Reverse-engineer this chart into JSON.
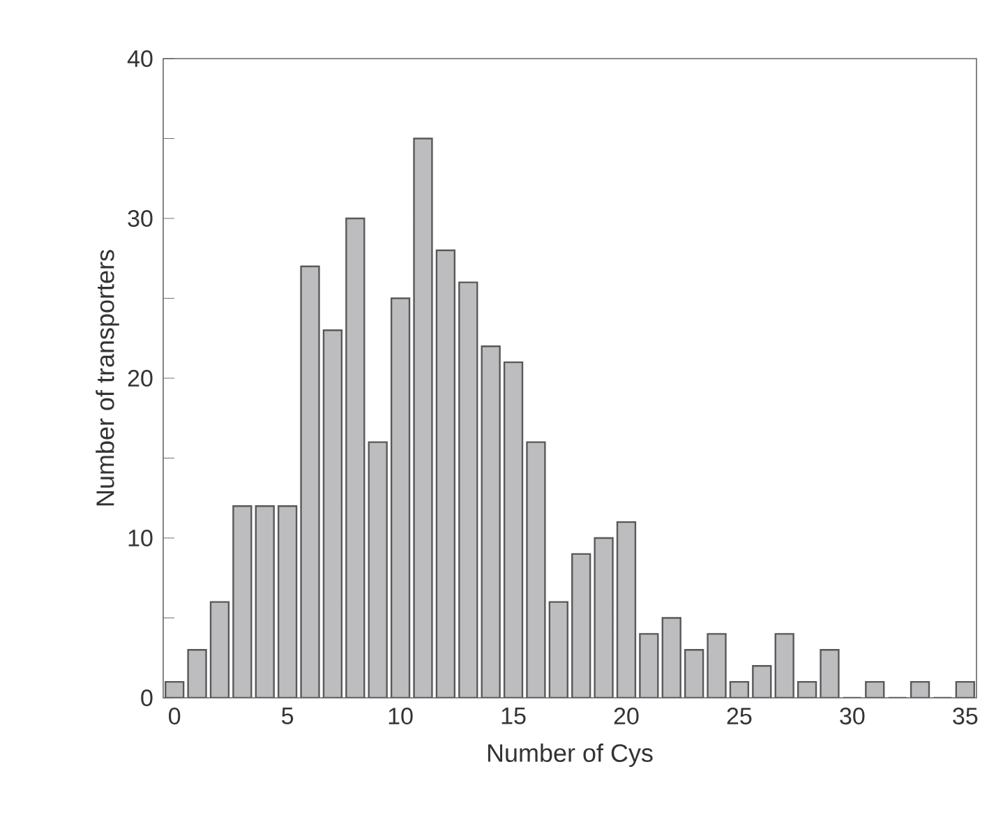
{
  "chart_data": {
    "type": "bar",
    "xlabel": "Number of Cys",
    "ylabel": "Number of transporters",
    "categories": [
      "0",
      null,
      null,
      null,
      null,
      "5",
      null,
      null,
      null,
      null,
      "10",
      null,
      null,
      null,
      null,
      "15",
      null,
      null,
      null,
      null,
      "20",
      null,
      null,
      null,
      null,
      "25",
      null,
      null,
      null,
      null,
      "30",
      null,
      null,
      null,
      null,
      "35"
    ],
    "values": [
      1,
      3,
      6,
      12,
      12,
      12,
      27,
      23,
      30,
      16,
      25,
      35,
      28,
      26,
      22,
      21,
      16,
      6,
      9,
      10,
      11,
      4,
      5,
      3,
      4,
      1,
      2,
      4,
      1,
      3,
      0,
      1,
      0,
      1,
      0,
      1
    ],
    "color": "#bdbdbf",
    "ylim": [
      0,
      40
    ],
    "yticks": [
      0,
      {
        "value": 5,
        "label": null
      },
      10,
      {
        "value": 15,
        "label": null
      },
      20,
      {
        "value": 25,
        "label": null
      },
      30,
      {
        "value": 35,
        "label": null
      },
      40
    ]
  }
}
